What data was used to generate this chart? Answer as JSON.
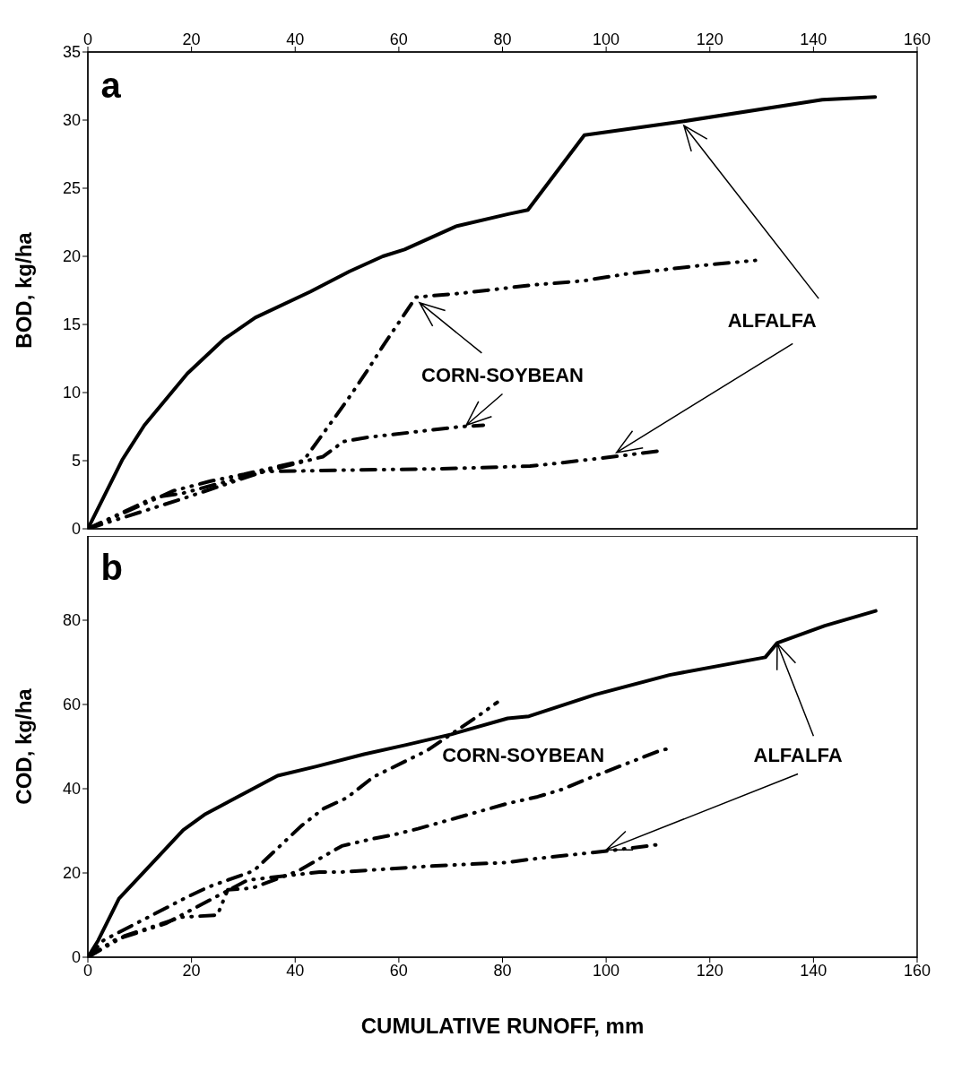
{
  "chart_data": [
    {
      "type": "line",
      "ylabel": "BOD, kg/ha",
      "xlim": [
        0,
        160
      ],
      "xticks": [
        0,
        20,
        40,
        60,
        80,
        100,
        120,
        140,
        160
      ],
      "ylim": [
        0,
        35
      ],
      "yticks": [
        0,
        5,
        10,
        15,
        20,
        25,
        30,
        35
      ],
      "legend": false,
      "marker": "none",
      "annotations": [
        "a",
        {
          "text": "CORN-SOYBEAN",
          "x": 64,
          "y": 16.6
        },
        {
          "text": "ALFALFA",
          "x": 115,
          "y": 29.6
        }
      ],
      "series": [
        {
          "color": "#000000",
          "line_style": "solid",
          "x": [
            0,
            6.7,
            10.9,
            19.2,
            26.2,
            32.3,
            42.9,
            50.5,
            56.9,
            61.1,
            71.0,
            81.1,
            84.9,
            95.8,
            114.7,
            141.7,
            151.9
          ],
          "values": [
            0,
            5.1,
            7.6,
            11.4,
            13.9,
            15.5,
            17.4,
            18.9,
            20.0,
            20.5,
            22.2,
            23.1,
            23.4,
            28.9,
            29.9,
            31.5,
            31.7
          ]
        },
        {
          "color": "#000000",
          "line_style": "dashed",
          "x": [
            0,
            16.6,
            23.7,
            30.1,
            41.6,
            47.7,
            50.7,
            53.9,
            56.9,
            63.3,
            72.3,
            85.9,
            95.5,
            103.8,
            117.6,
            128.8
          ],
          "values": [
            0,
            2.8,
            3.5,
            4.0,
            5.0,
            8.2,
            9.8,
            11.6,
            13.4,
            17.0,
            17.3,
            17.9,
            18.2,
            18.7,
            19.3,
            19.7
          ]
        },
        {
          "color": "#000000",
          "line_style": "dashed",
          "x": [
            0,
            12.8,
            18.2,
            28,
            45.4,
            49.3,
            53.7,
            72.0,
            76.3
          ],
          "values": [
            0,
            2.3,
            2.6,
            3.6,
            5.3,
            6.4,
            6.7,
            7.5,
            7.6
          ]
        },
        {
          "color": "#000000",
          "line_style": "dashed",
          "x": [
            0,
            18.2,
            33.9,
            48.6,
            67.2,
            85.3,
            90.4,
            103.8,
            109.9
          ],
          "values": [
            0,
            2.2,
            4.2,
            4.3,
            4.4,
            4.6,
            4.8,
            5.4,
            5.7
          ]
        }
      ]
    },
    {
      "type": "line",
      "xlabel": "CUMULATIVE RUNOFF, mm",
      "ylabel": "COD, kg/ha",
      "xlim": [
        0,
        160
      ],
      "xticks": [
        0,
        20,
        40,
        60,
        80,
        100,
        120,
        140,
        160
      ],
      "ylim": [
        0,
        100
      ],
      "yticks": [
        0,
        20,
        40,
        60,
        80
      ],
      "legend": false,
      "marker": "none",
      "annotations": [
        "b",
        "CORN-SOYBEAN",
        {
          "text": "ALFALFA",
          "x": 133,
          "y": 74.5
        }
      ],
      "series": [
        {
          "color": "#000000",
          "line_style": "solid",
          "x": [
            0,
            2,
            6.0,
            18.4,
            22.7,
            36.6,
            44.1,
            53.3,
            61.4,
            70.1,
            81.0,
            85.1,
            97.8,
            112.2,
            130.7,
            133.0,
            142.2,
            152.0
          ],
          "values": [
            0,
            4,
            13.9,
            30.2,
            34.0,
            43.1,
            45.3,
            48.2,
            50.4,
            52.9,
            56.7,
            57.2,
            62.3,
            67.0,
            71.2,
            74.6,
            78.7,
            82.2
          ]
        },
        {
          "color": "#000000",
          "line_style": "dashed",
          "x": [
            0,
            3,
            14,
            19.0,
            23.3,
            32.0,
            41.2,
            45.5,
            49.9,
            55.1,
            65.5,
            75.0,
            79.0
          ],
          "values": [
            0,
            4,
            11,
            14.2,
            16.7,
            20.5,
            31.2,
            35.3,
            37.8,
            42.8,
            49.1,
            57.0,
            60.5
          ]
        },
        {
          "color": "#000000",
          "line_style": "dashed",
          "x": [
            0,
            7,
            18,
            25,
            27,
            31.7,
            40.6,
            49.0,
            54.5,
            59.1,
            63.7,
            81.0,
            86.8,
            91.4,
            96.1,
            110.5,
            112.0
          ],
          "values": [
            0,
            5,
            9.5,
            10,
            16,
            16.4,
            20.5,
            26.4,
            28.0,
            29.1,
            30.5,
            36.5,
            38.1,
            39.8,
            42.2,
            49.1,
            49.5
          ]
        },
        {
          "color": "#000000",
          "line_style": "dashed",
          "x": [
            0,
            5,
            15,
            30.8,
            44.7,
            48.7,
            63.2,
            67.2,
            81.0,
            85.7,
            100.1,
            110.5
          ],
          "values": [
            0,
            4,
            8,
            18.3,
            20.2,
            20.2,
            21.4,
            21.7,
            22.5,
            23.3,
            25.2,
            26.8
          ]
        }
      ]
    }
  ]
}
